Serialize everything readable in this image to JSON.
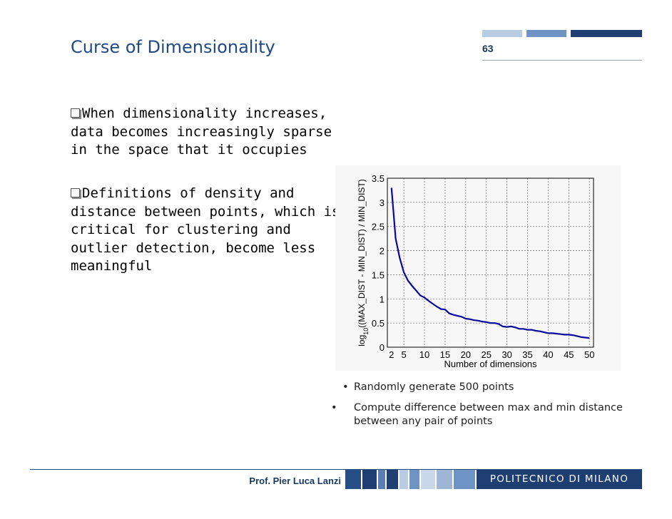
{
  "slide": {
    "title": "Curse of Dimensionality",
    "page_number": "63",
    "bullets": [
      "When dimensionality increases, data becomes increasingly sparse in the space that it occupies",
      "Definitions of density and distance between points, which is critical for clustering and outlier detection, become less meaningful"
    ],
    "notes": [
      "Randomly generate 500 points",
      "Compute difference between max and min distance between any pair of points"
    ],
    "author": "Prof. Pier Luca Lanzi",
    "institution": "POLITECNICO DI MILANO",
    "colors": {
      "title": "#1f4a86",
      "line": "#0a0a9e",
      "footer": "#1f3f72"
    }
  },
  "chart_data": {
    "type": "line",
    "xlabel": "Number of dimensions",
    "ylabel_main": "log",
    "ylabel_sub": "10",
    "ylabel_rest": "((MAX_DIST - MIN_DIST) / MIN_DIST)",
    "xlim": [
      1,
      51
    ],
    "ylim": [
      0,
      3.5
    ],
    "xticks": [
      2,
      5,
      10,
      15,
      20,
      25,
      30,
      35,
      40,
      45,
      50
    ],
    "yticks": [
      0,
      0.5,
      1,
      1.5,
      2,
      2.5,
      3,
      3.5
    ],
    "grid": true,
    "x": [
      2,
      3,
      4,
      5,
      6,
      7,
      8,
      9,
      10,
      11,
      12,
      13,
      14,
      15,
      16,
      17,
      18,
      19,
      20,
      21,
      22,
      23,
      24,
      25,
      26,
      27,
      28,
      29,
      30,
      31,
      32,
      33,
      34,
      35,
      36,
      37,
      38,
      39,
      40,
      41,
      42,
      43,
      44,
      45,
      46,
      47,
      48,
      49,
      50
    ],
    "y": [
      3.3,
      2.25,
      1.85,
      1.55,
      1.38,
      1.27,
      1.17,
      1.07,
      1.03,
      0.96,
      0.9,
      0.84,
      0.79,
      0.78,
      0.7,
      0.67,
      0.65,
      0.63,
      0.59,
      0.58,
      0.56,
      0.55,
      0.53,
      0.52,
      0.5,
      0.5,
      0.48,
      0.43,
      0.42,
      0.43,
      0.41,
      0.38,
      0.38,
      0.36,
      0.36,
      0.34,
      0.33,
      0.31,
      0.29,
      0.29,
      0.28,
      0.27,
      0.26,
      0.26,
      0.25,
      0.23,
      0.21,
      0.2,
      0.19
    ]
  }
}
